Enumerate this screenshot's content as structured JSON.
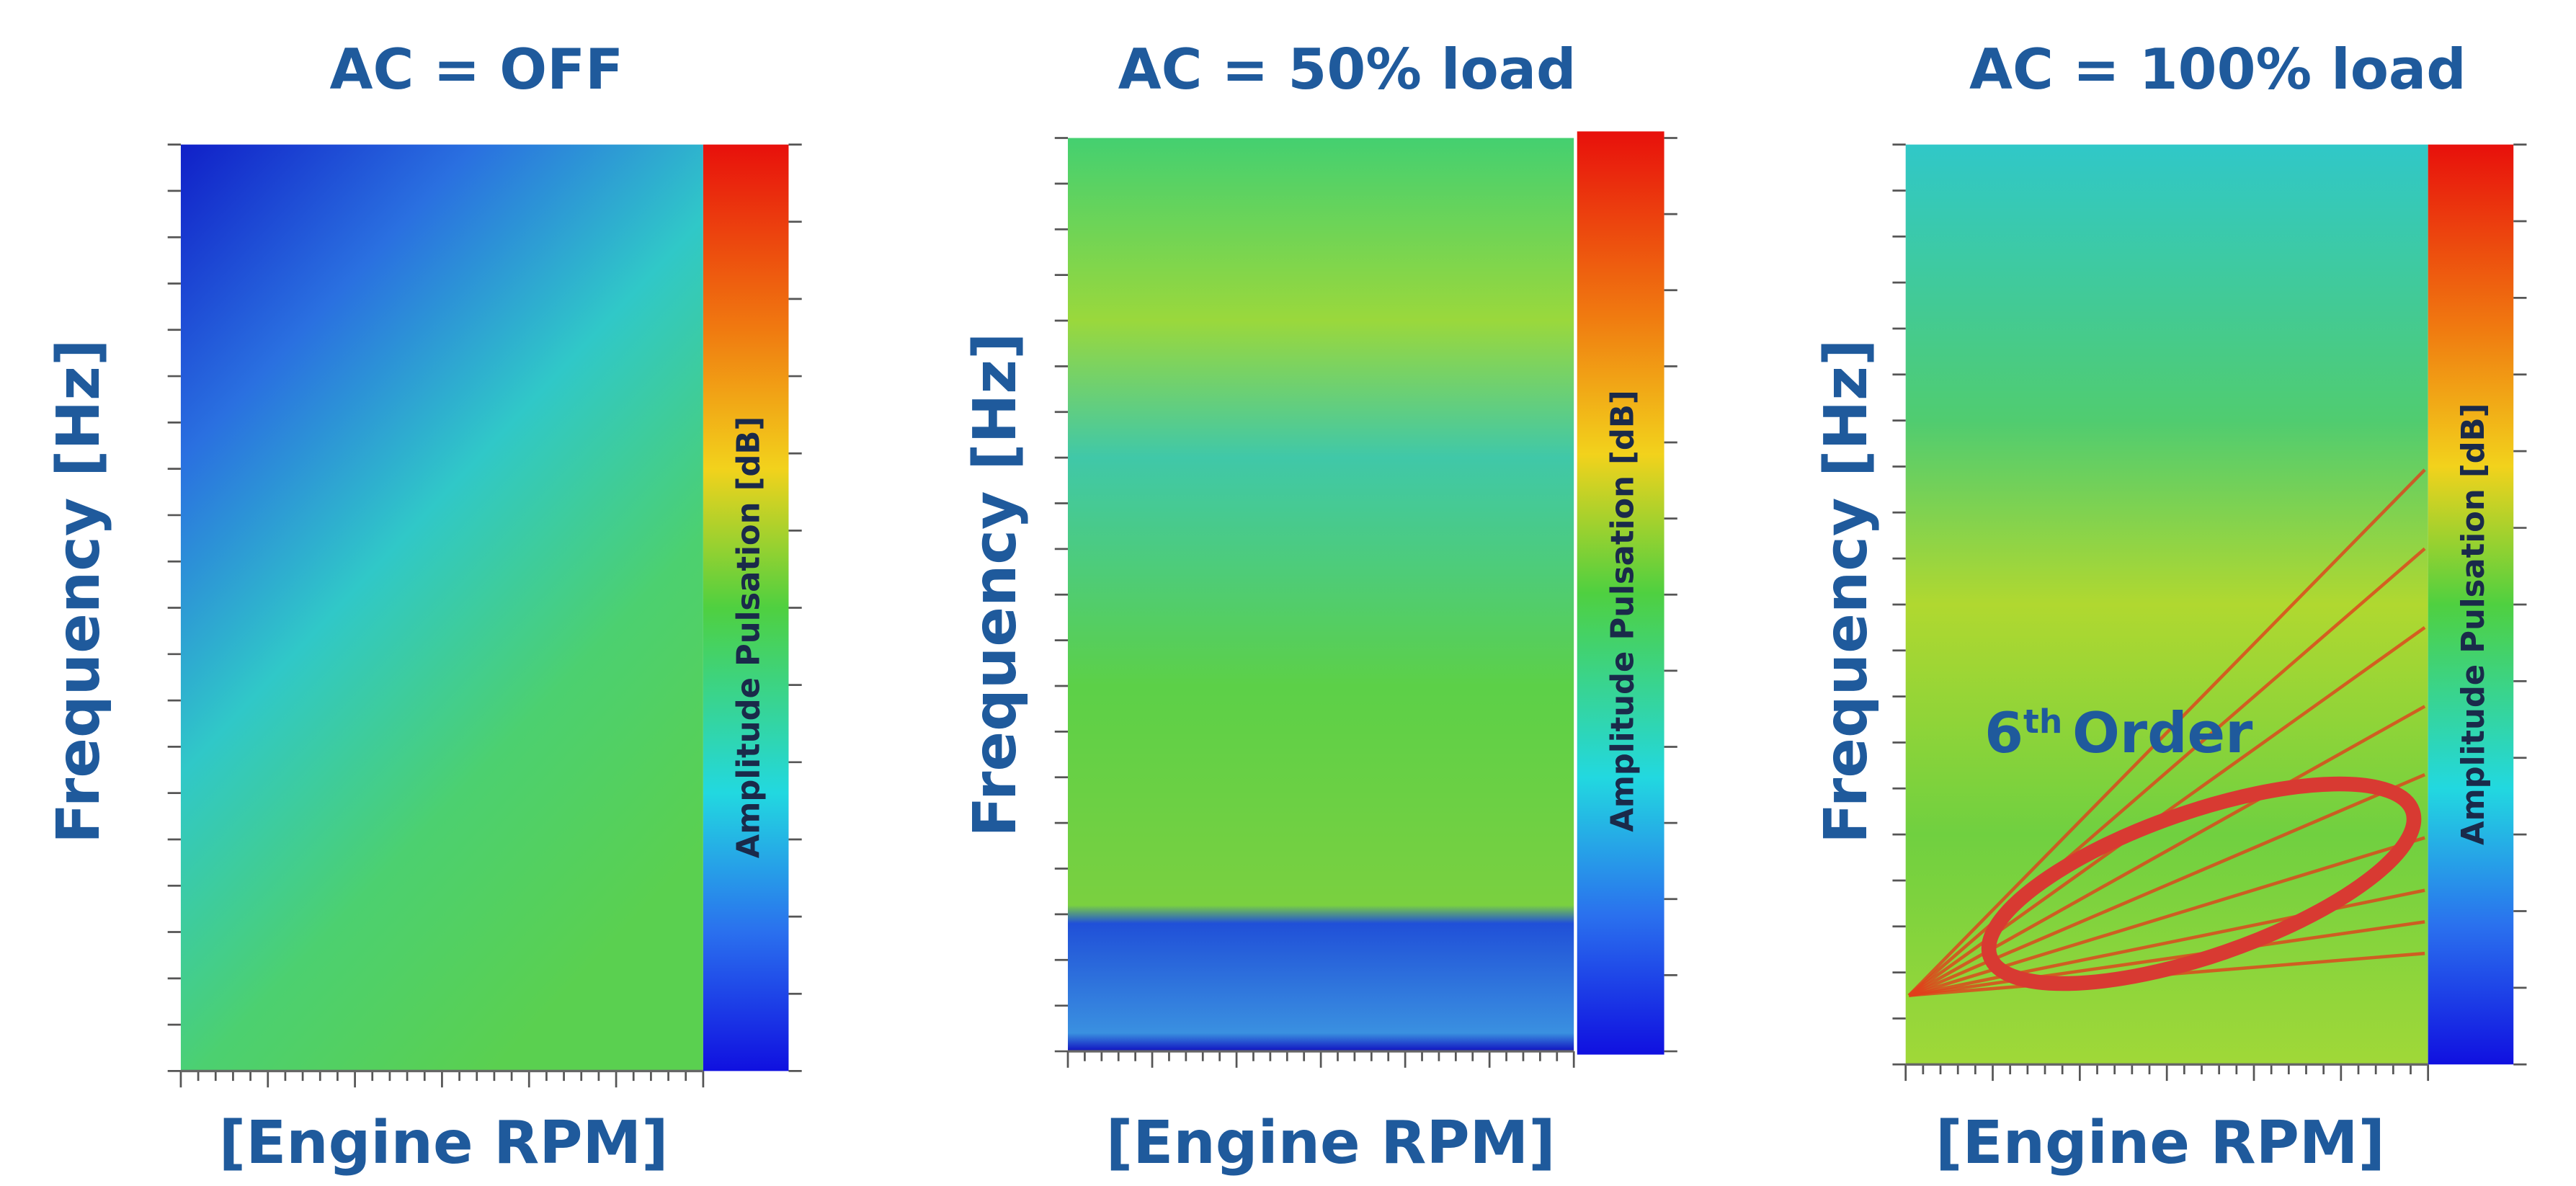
{
  "panels": [
    {
      "title": "AC = OFF",
      "y_label": "Frequency [Hz]",
      "x_label": "[Engine RPM]",
      "colorbar_label": "Amplitude Pulsation [dB]"
    },
    {
      "title": "AC = 50% load",
      "y_label": "Frequency [Hz]",
      "x_label": "[Engine RPM]",
      "colorbar_label": "Amplitude Pulsation [dB]"
    },
    {
      "title": "AC = 100% load",
      "y_label": "Frequency [Hz]",
      "x_label": "[Engine RPM]",
      "colorbar_label": "Amplitude Pulsation [dB]"
    }
  ],
  "annotation": {
    "number": "6",
    "suffix": "th",
    "text": "Order"
  }
}
